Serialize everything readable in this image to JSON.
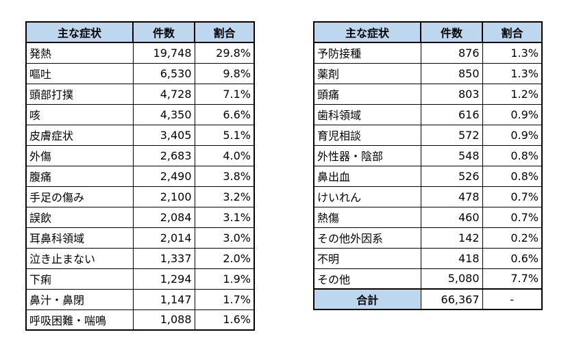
{
  "headers": {
    "symptom": "主な症状",
    "count": "件数",
    "ratio": "割合"
  },
  "left_rows": [
    {
      "name": "発熱",
      "count": "19,748",
      "ratio": "29.8%"
    },
    {
      "name": "嘔吐",
      "count": "6,530",
      "ratio": "9.8%"
    },
    {
      "name": "頭部打撲",
      "count": "4,728",
      "ratio": "7.1%"
    },
    {
      "name": "咳",
      "count": "4,350",
      "ratio": "6.6%"
    },
    {
      "name": "皮膚症状",
      "count": "3,405",
      "ratio": "5.1%"
    },
    {
      "name": "外傷",
      "count": "2,683",
      "ratio": "4.0%"
    },
    {
      "name": "腹痛",
      "count": "2,490",
      "ratio": "3.8%"
    },
    {
      "name": "手足の傷み",
      "count": "2,100",
      "ratio": "3.2%"
    },
    {
      "name": "誤飲",
      "count": "2,084",
      "ratio": "3.1%"
    },
    {
      "name": "耳鼻科領域",
      "count": "2,014",
      "ratio": "3.0%"
    },
    {
      "name": "泣き止まない",
      "count": "1,337",
      "ratio": "2.0%"
    },
    {
      "name": "下痢",
      "count": "1,294",
      "ratio": "1.9%"
    },
    {
      "name": "鼻汁・鼻閉",
      "count": "1,147",
      "ratio": "1.7%"
    },
    {
      "name": "呼吸困難・喘鳴",
      "count": "1,088",
      "ratio": "1.6%"
    }
  ],
  "right_rows": [
    {
      "name": "予防接種",
      "count": "876",
      "ratio": "1.3%"
    },
    {
      "name": "薬剤",
      "count": "850",
      "ratio": "1.3%"
    },
    {
      "name": "頭痛",
      "count": "803",
      "ratio": "1.2%"
    },
    {
      "name": "歯科領域",
      "count": "616",
      "ratio": "0.9%"
    },
    {
      "name": "育児相談",
      "count": "572",
      "ratio": "0.9%"
    },
    {
      "name": "外性器・陰部",
      "count": "548",
      "ratio": "0.8%"
    },
    {
      "name": "鼻出血",
      "count": "526",
      "ratio": "0.8%"
    },
    {
      "name": "けいれん",
      "count": "478",
      "ratio": "0.7%"
    },
    {
      "name": "熱傷",
      "count": "460",
      "ratio": "0.7%"
    },
    {
      "name": "その他外因系",
      "count": "142",
      "ratio": "0.2%"
    },
    {
      "name": "不明",
      "count": "418",
      "ratio": "0.6%"
    },
    {
      "name": "その他",
      "count": "5,080",
      "ratio": "7.7%"
    }
  ],
  "total": {
    "label": "合計",
    "count": "66,367",
    "ratio": "-"
  }
}
